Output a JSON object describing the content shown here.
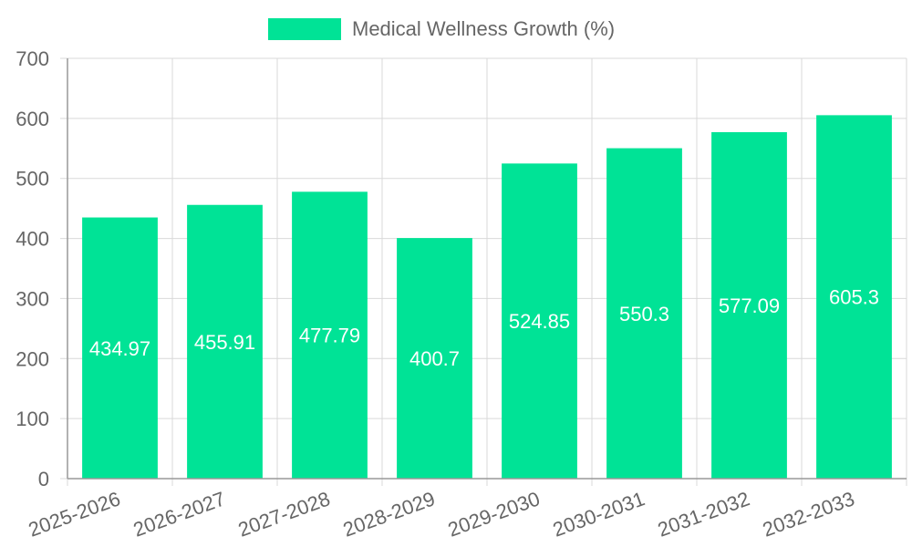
{
  "chart_data": {
    "type": "bar",
    "categories": [
      "2025-2026",
      "2026-2027",
      "2027-2028",
      "2028-2029",
      "2029-2030",
      "2030-2031",
      "2031-2032",
      "2032-2033"
    ],
    "series": [
      {
        "name": "Medical Wellness Growth (%)",
        "values": [
          434.97,
          455.91,
          477.79,
          400.7,
          524.85,
          550.3,
          577.09,
          605.3
        ],
        "value_labels": [
          "434.97",
          "455.91",
          "477.79",
          "400.7",
          "524.85",
          "550.3",
          "577.09",
          "605.3"
        ]
      }
    ],
    "ylim": [
      0,
      700
    ],
    "yticks": [
      "0",
      "100",
      "200",
      "300",
      "400",
      "500",
      "600",
      "700"
    ],
    "grid": true,
    "legend": "top-center",
    "colors": {
      "bar": "#00e396",
      "grid": "#d9d9d9",
      "axis": "#999999",
      "text": "#666666"
    }
  }
}
